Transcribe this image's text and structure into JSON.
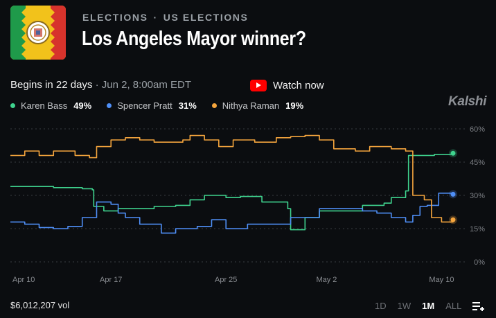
{
  "header": {
    "category": "ELECTIONS",
    "subcategory": "US ELECTIONS",
    "separator": "·",
    "title": "Los Angeles Mayor winner?"
  },
  "status": {
    "begins": "Begins in 22 days",
    "date": "· Jun 2, 8:00am EDT"
  },
  "watch": {
    "label": "Watch now"
  },
  "brand": "Kalshi",
  "legend": [
    {
      "name": "Karen Bass",
      "pct": "49%",
      "color": "#3fd38e"
    },
    {
      "name": "Spencer Pratt",
      "pct": "31%",
      "color": "#4f8ff7"
    },
    {
      "name": "Nithya Raman",
      "pct": "19%",
      "color": "#f5a53d"
    }
  ],
  "volume": "$6,012,207 vol",
  "ranges": [
    {
      "label": "1D",
      "active": false
    },
    {
      "label": "1W",
      "active": false
    },
    {
      "label": "1M",
      "active": true
    },
    {
      "label": "ALL",
      "active": false
    }
  ],
  "chart_data": {
    "type": "line",
    "x_start": "Apr 10",
    "x_end": "May 10",
    "xticks": [
      {
        "label": "Apr 10",
        "day": 0
      },
      {
        "label": "Apr 17",
        "day": 7
      },
      {
        "label": "Apr 25",
        "day": 15
      },
      {
        "label": "May 2",
        "day": 22
      },
      {
        "label": "May 10",
        "day": 30
      }
    ],
    "yticks": [
      "60%",
      "45%",
      "30%",
      "15%",
      "0%"
    ],
    "ylim": [
      0,
      60
    ],
    "grid": true,
    "series": [
      {
        "name": "Karen Bass",
        "color": "#3fd38e",
        "points": [
          [
            0,
            34
          ],
          [
            1.5,
            34
          ],
          [
            3,
            33.5
          ],
          [
            5,
            33
          ],
          [
            5.7,
            32.5
          ],
          [
            5.8,
            25
          ],
          [
            6.5,
            23
          ],
          [
            7.5,
            24
          ],
          [
            9,
            24
          ],
          [
            10,
            25
          ],
          [
            11.5,
            25.5
          ],
          [
            12.5,
            28
          ],
          [
            13.5,
            30
          ],
          [
            15,
            29
          ],
          [
            16,
            29.5
          ],
          [
            17.5,
            27
          ],
          [
            18.5,
            27
          ],
          [
            19.3,
            24
          ],
          [
            19.5,
            14.5
          ],
          [
            20.3,
            14.5
          ],
          [
            20.5,
            20
          ],
          [
            21.5,
            23
          ],
          [
            23,
            23
          ],
          [
            24.5,
            25.5
          ],
          [
            26,
            26.5
          ],
          [
            26.5,
            29
          ],
          [
            27.5,
            32
          ],
          [
            27.7,
            48
          ],
          [
            28.5,
            48
          ],
          [
            29.5,
            48.5
          ],
          [
            30.8,
            49
          ]
        ]
      },
      {
        "name": "Spencer Pratt",
        "color": "#4f8ff7",
        "points": [
          [
            0,
            18
          ],
          [
            1,
            17
          ],
          [
            2,
            15.5
          ],
          [
            3,
            15
          ],
          [
            4,
            16
          ],
          [
            5,
            20
          ],
          [
            6,
            27
          ],
          [
            7,
            26
          ],
          [
            7.5,
            22
          ],
          [
            8,
            20
          ],
          [
            9,
            17
          ],
          [
            10.5,
            13
          ],
          [
            11.5,
            15
          ],
          [
            13,
            16
          ],
          [
            14,
            19
          ],
          [
            15,
            15
          ],
          [
            16.5,
            17
          ],
          [
            17.5,
            17
          ],
          [
            19,
            17
          ],
          [
            19.5,
            20
          ],
          [
            20.5,
            20
          ],
          [
            21.5,
            24
          ],
          [
            23,
            24
          ],
          [
            24.5,
            23
          ],
          [
            25.5,
            22
          ],
          [
            26.5,
            20
          ],
          [
            27.5,
            18
          ],
          [
            28,
            21
          ],
          [
            28.5,
            25
          ],
          [
            29,
            25.5
          ],
          [
            29.8,
            31
          ],
          [
            30.8,
            30.5
          ]
        ]
      },
      {
        "name": "Nithya Raman",
        "color": "#f5a53d",
        "points": [
          [
            0,
            48
          ],
          [
            1,
            50
          ],
          [
            2,
            48
          ],
          [
            3,
            50
          ],
          [
            4.5,
            48
          ],
          [
            5.5,
            47
          ],
          [
            6,
            52
          ],
          [
            7,
            55
          ],
          [
            8,
            56
          ],
          [
            9,
            55
          ],
          [
            10,
            54
          ],
          [
            12,
            55
          ],
          [
            12.5,
            57
          ],
          [
            13.5,
            55
          ],
          [
            14.5,
            52
          ],
          [
            15.5,
            55
          ],
          [
            17,
            54
          ],
          [
            18.5,
            56
          ],
          [
            19.5,
            56.5
          ],
          [
            20.5,
            57
          ],
          [
            21.5,
            55
          ],
          [
            22.5,
            51
          ],
          [
            24,
            50
          ],
          [
            25,
            52
          ],
          [
            26.5,
            51
          ],
          [
            27.5,
            50
          ],
          [
            28,
            30
          ],
          [
            28.8,
            28
          ],
          [
            29.3,
            20
          ],
          [
            30,
            18
          ],
          [
            30.8,
            19
          ]
        ]
      }
    ]
  }
}
